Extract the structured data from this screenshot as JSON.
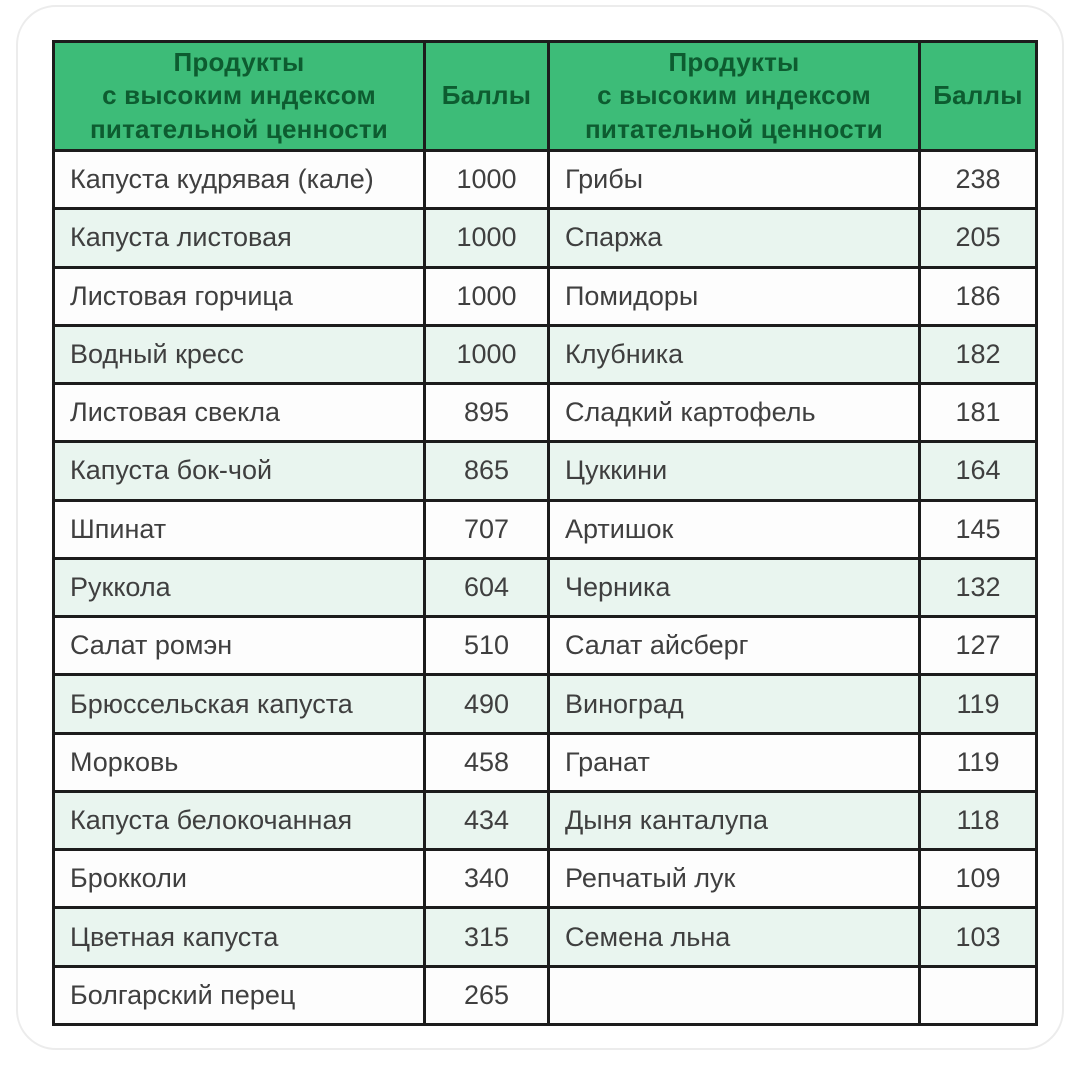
{
  "colors": {
    "header_bg": "#3dbc78",
    "header_text": "#0d5c30",
    "border": "#1c1c1c",
    "row_base": "#fdfdfd",
    "row_alt": "#e9f5ef",
    "text": "#3f3f3f"
  },
  "chart_data": {
    "type": "table",
    "title": "Продукты с высоким индексом питательной ценности",
    "legend_position": "none",
    "grid": true,
    "header": [
      "Продукты\nс высоким индексом\nпитательной ценности",
      "Баллы",
      "Продукты\nс высоким индексом\nпитательной ценности",
      "Баллы"
    ],
    "rows": [
      [
        "Капуста кудрявая (кале)",
        "1000",
        "Грибы",
        "238"
      ],
      [
        "Капуста листовая",
        "1000",
        "Спаржа",
        "205"
      ],
      [
        "Листовая горчица",
        "1000",
        "Помидоры",
        "186"
      ],
      [
        "Водный кресс",
        "1000",
        "Клубника",
        "182"
      ],
      [
        "Листовая свекла",
        "895",
        "Сладкий картофель",
        "181"
      ],
      [
        "Капуста бок-чой",
        "865",
        "Цуккини",
        "164"
      ],
      [
        "Шпинат",
        "707",
        "Артишок",
        "145"
      ],
      [
        "Руккола",
        "604",
        "Черника",
        "132"
      ],
      [
        "Салат ромэн",
        "510",
        "Салат айсберг",
        "127"
      ],
      [
        "Брюссельская капуста",
        "490",
        "Виноград",
        "119"
      ],
      [
        "Морковь",
        "458",
        "Гранат",
        "119"
      ],
      [
        "Капуста белокочанная",
        "434",
        "Дыня канталупа",
        "118"
      ],
      [
        "Брокколи",
        "340",
        "Репчатый лук",
        "109"
      ],
      [
        "Цветная капуста",
        "315",
        "Семена льна",
        "103"
      ],
      [
        "Болгарский перец",
        "265",
        "",
        ""
      ]
    ]
  }
}
